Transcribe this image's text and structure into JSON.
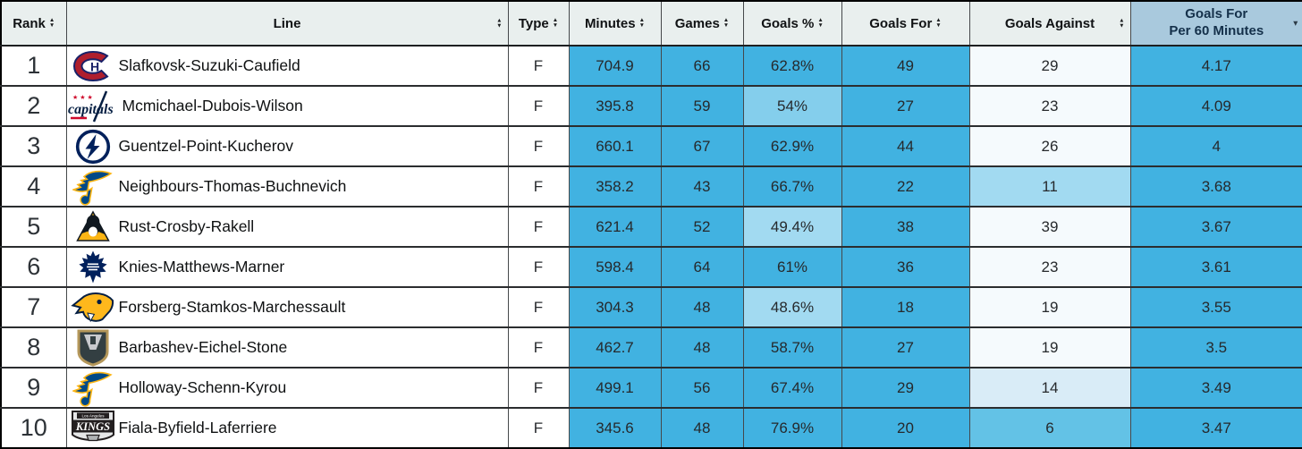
{
  "colors": {
    "header_bg": "#e9efee",
    "sorted_header_bg": "#a9c9dd",
    "cell_blue": "#41b2e1",
    "blue_b1": "#63c2e6",
    "blue_b2": "#84ceec",
    "blue_b3": "#a2daf1",
    "blue_b4": "#d9ecf7",
    "near_white": "#f5fafd"
  },
  "header": {
    "columns": [
      {
        "label": "Rank"
      },
      {
        "label": "Line"
      },
      {
        "label": "Type"
      },
      {
        "label": "Minutes"
      },
      {
        "label": "Games"
      },
      {
        "label": "Goals %"
      },
      {
        "label": "Goals For"
      },
      {
        "label": "Goals Against"
      },
      {
        "label": "Goals For Per 60 Minutes",
        "two_line": [
          "Goals For",
          "Per 60 Minutes"
        ],
        "sorted": "desc"
      }
    ],
    "sort_icon": "up-down-sort-icon",
    "sorted_icon": "sort-desc-arrow-icon"
  },
  "rows": [
    {
      "rank": "1",
      "team": "canadiens",
      "team_name": "montreal-canadiens-logo",
      "line": "Slafkovsk-Suzuki-Caufield",
      "type": "F",
      "minutes": "704.9",
      "games": "66",
      "goals_pct": "62.8%",
      "goals_for": "49",
      "goals_against": "29",
      "gf_per60": "4.17",
      "pct_shade": "cell_blue",
      "ga_shade": "near_white"
    },
    {
      "rank": "2",
      "team": "capitals",
      "team_name": "washington-capitals-logo",
      "line": "Mcmichael-Dubois-Wilson",
      "type": "F",
      "minutes": "395.8",
      "games": "59",
      "goals_pct": "54%",
      "goals_for": "27",
      "goals_against": "23",
      "gf_per60": "4.09",
      "pct_shade": "blue_b2",
      "ga_shade": "near_white"
    },
    {
      "rank": "3",
      "team": "lightning",
      "team_name": "tampa-bay-lightning-logo",
      "line": "Guentzel-Point-Kucherov",
      "type": "F",
      "minutes": "660.1",
      "games": "67",
      "goals_pct": "62.9%",
      "goals_for": "44",
      "goals_against": "26",
      "gf_per60": "4",
      "pct_shade": "cell_blue",
      "ga_shade": "near_white"
    },
    {
      "rank": "4",
      "team": "blues",
      "team_name": "st-louis-blues-logo",
      "line": "Neighbours-Thomas-Buchnevich",
      "type": "F",
      "minutes": "358.2",
      "games": "43",
      "goals_pct": "66.7%",
      "goals_for": "22",
      "goals_against": "11",
      "gf_per60": "3.68",
      "pct_shade": "cell_blue",
      "ga_shade": "blue_b3"
    },
    {
      "rank": "5",
      "team": "penguins",
      "team_name": "pittsburgh-penguins-logo",
      "line": "Rust-Crosby-Rakell",
      "type": "F",
      "minutes": "621.4",
      "games": "52",
      "goals_pct": "49.4%",
      "goals_for": "38",
      "goals_against": "39",
      "gf_per60": "3.67",
      "pct_shade": "blue_b3",
      "ga_shade": "near_white"
    },
    {
      "rank": "6",
      "team": "mapleleafs",
      "team_name": "toronto-maple-leafs-logo",
      "line": "Knies-Matthews-Marner",
      "type": "F",
      "minutes": "598.4",
      "games": "64",
      "goals_pct": "61%",
      "goals_for": "36",
      "goals_against": "23",
      "gf_per60": "3.61",
      "pct_shade": "cell_blue",
      "ga_shade": "near_white"
    },
    {
      "rank": "7",
      "team": "predators",
      "team_name": "nashville-predators-logo",
      "line": "Forsberg-Stamkos-Marchessault",
      "type": "F",
      "minutes": "304.3",
      "games": "48",
      "goals_pct": "48.6%",
      "goals_for": "18",
      "goals_against": "19",
      "gf_per60": "3.55",
      "pct_shade": "blue_b3",
      "ga_shade": "near_white"
    },
    {
      "rank": "8",
      "team": "goldenknights",
      "team_name": "vegas-golden-knights-logo",
      "line": "Barbashev-Eichel-Stone",
      "type": "F",
      "minutes": "462.7",
      "games": "48",
      "goals_pct": "58.7%",
      "goals_for": "27",
      "goals_against": "19",
      "gf_per60": "3.5",
      "pct_shade": "cell_blue",
      "ga_shade": "near_white"
    },
    {
      "rank": "9",
      "team": "blues",
      "team_name": "st-louis-blues-logo",
      "line": "Holloway-Schenn-Kyrou",
      "type": "F",
      "minutes": "499.1",
      "games": "56",
      "goals_pct": "67.4%",
      "goals_for": "29",
      "goals_against": "14",
      "gf_per60": "3.49",
      "pct_shade": "cell_blue",
      "ga_shade": "blue_b4"
    },
    {
      "rank": "10",
      "team": "kings",
      "team_name": "los-angeles-kings-logo",
      "line": "Fiala-Byfield-Laferriere",
      "type": "F",
      "minutes": "345.6",
      "games": "48",
      "goals_pct": "76.9%",
      "goals_for": "20",
      "goals_against": "6",
      "gf_per60": "3.47",
      "pct_shade": "cell_blue",
      "ga_shade": "blue_b1"
    }
  ]
}
